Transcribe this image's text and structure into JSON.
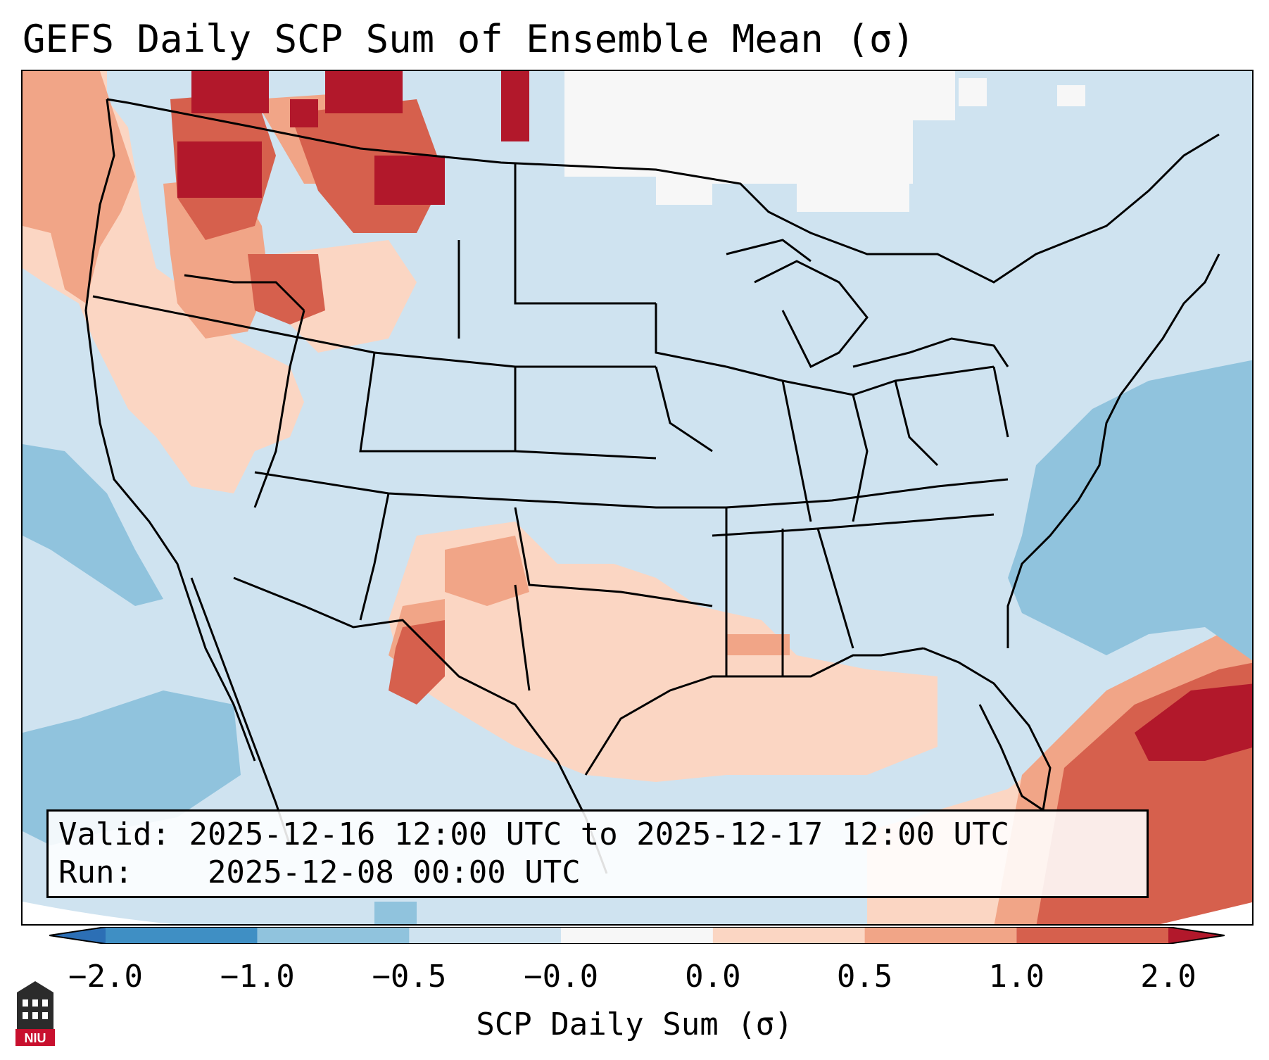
{
  "title": "GEFS Daily SCP Sum of Ensemble Mean (σ)",
  "info": {
    "valid_label": "Valid:",
    "valid_value": "2025-12-16 12:00 UTC to 2025-12-17 12:00 UTC",
    "run_label": "Run:",
    "run_value": "2025-12-08 00:00 UTC"
  },
  "colorbar": {
    "label": "SCP Daily Sum (σ)",
    "ticks": [
      "−2.0",
      "−1.0",
      "−0.5",
      "−0.0",
      "0.0",
      "0.5",
      "1.0",
      "2.0"
    ],
    "bins": [
      {
        "range": "< -2.0",
        "color": "#2c6fb5"
      },
      {
        "range": "-2.0 to -1.0",
        "color": "#3f8fc4"
      },
      {
        "range": "-1.0 to -0.5",
        "color": "#90c3dd"
      },
      {
        "range": "-0.5 to -0.0",
        "color": "#cfe3f0"
      },
      {
        "range": "-0.0 to 0.0",
        "color": "#f7f7f7"
      },
      {
        "range": "0.0 to 0.5",
        "color": "#fbd6c3"
      },
      {
        "range": "0.5 to 1.0",
        "color": "#f1a587"
      },
      {
        "range": "1.0 to 2.0",
        "color": "#d6604d"
      },
      {
        "range": "> 2.0",
        "color": "#b2182b"
      }
    ]
  },
  "logo": {
    "text": "NIU"
  }
}
